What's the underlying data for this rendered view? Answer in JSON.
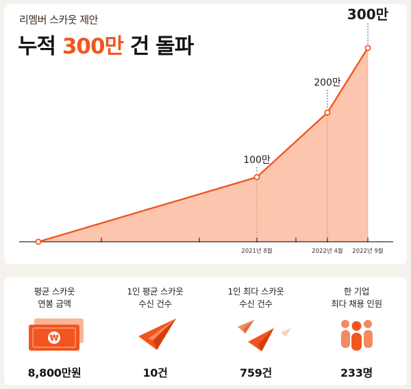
{
  "header": {
    "subtitle": "리멤버 스카웃 제안",
    "title_prefix": "누적 ",
    "title_accent": "300만",
    "title_suffix": " 건 돌파"
  },
  "chart_data": {
    "type": "area",
    "x": [
      "",
      "2021년 8월",
      "2022년 4월",
      "2022년 9월"
    ],
    "values": [
      0,
      100,
      200,
      300
    ],
    "unit": "만",
    "point_labels": [
      "",
      "100만",
      "200만",
      "300만"
    ],
    "tick_labels": [
      "2021년 8월",
      "2022년 4월",
      "2022년 9월"
    ],
    "colors": {
      "line": "#f2551f",
      "fill": "#fcc5ad",
      "axis": "#2a2a2a"
    },
    "grid": false
  },
  "stats": [
    {
      "label_lines": [
        "평균 스카웃",
        "연봉 금액"
      ],
      "value": "8,800만원",
      "icon": "money-icon"
    },
    {
      "label_lines": [
        "1인 평균 스카웃",
        "수신 건수"
      ],
      "value": "10건",
      "icon": "paper-plane-icon"
    },
    {
      "label_lines": [
        "1인 최다 스카웃",
        "수신 건수"
      ],
      "value": "759건",
      "icon": "paper-planes-icon"
    },
    {
      "label_lines": [
        "한 기업",
        "최다 채용 인원"
      ],
      "value": "233명",
      "icon": "people-icon"
    }
  ],
  "money_symbol": "₩"
}
